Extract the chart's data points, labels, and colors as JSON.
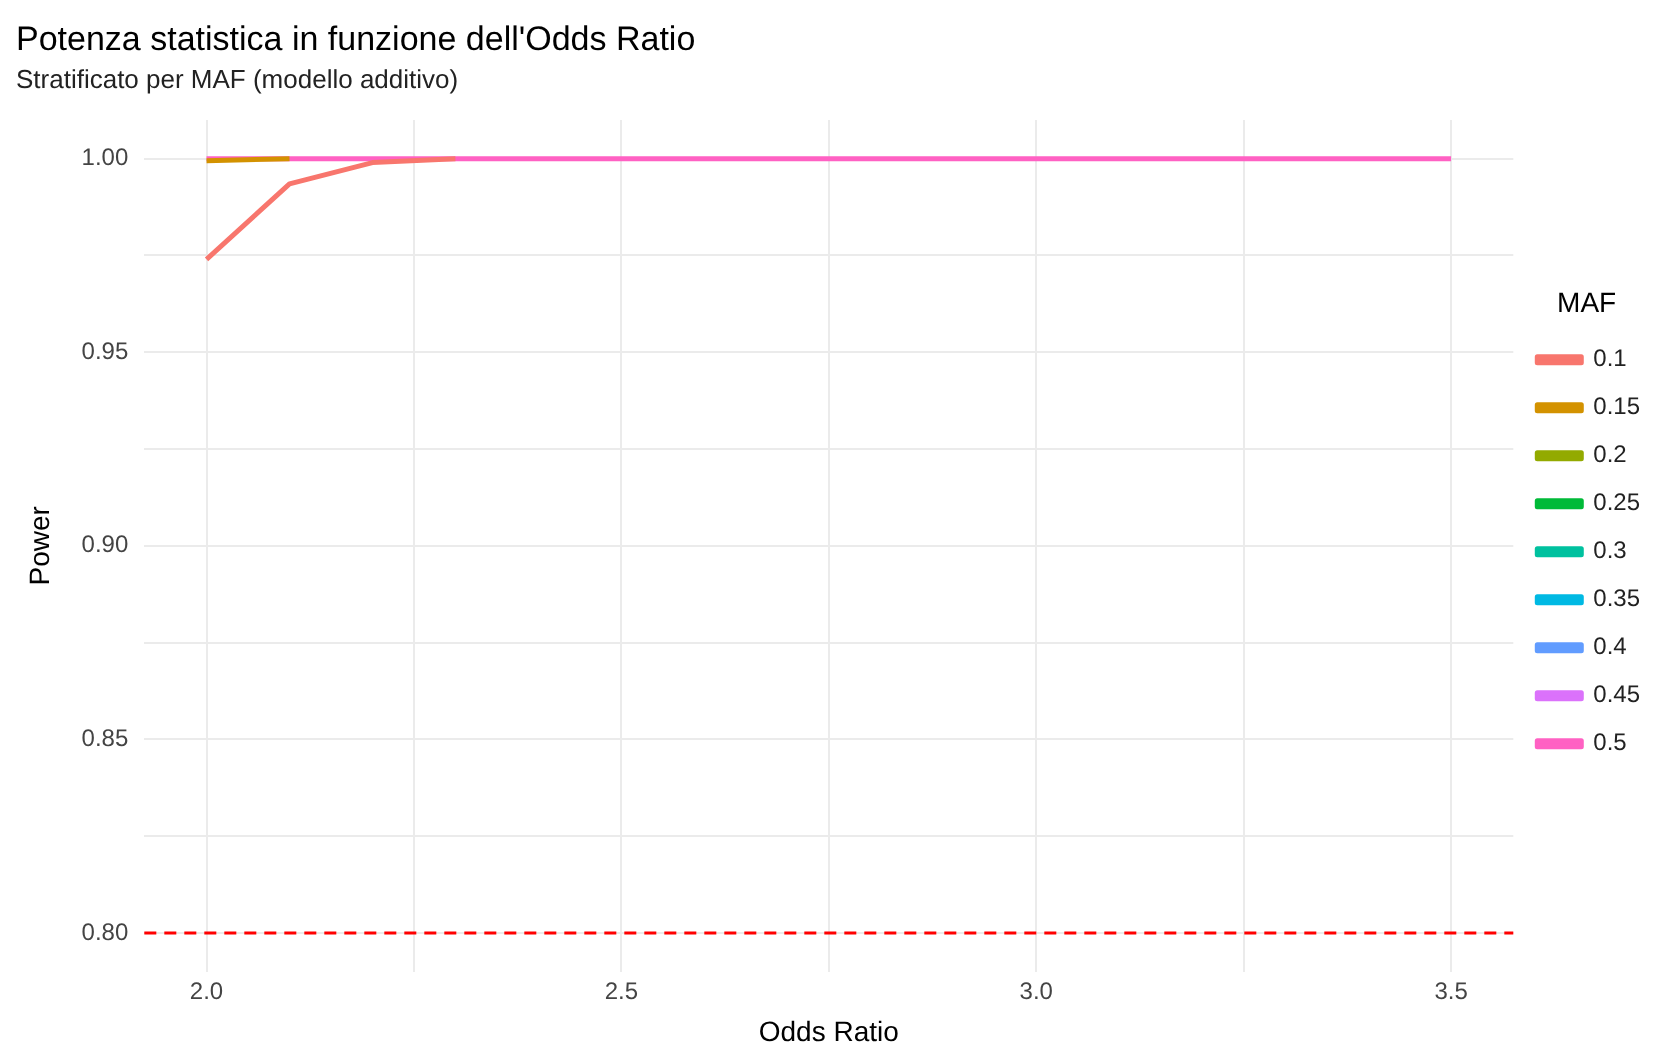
{
  "chart_data": {
    "type": "line",
    "title": "Potenza statistica in funzione dell'Odds Ratio",
    "subtitle": "Stratificato per MAF (modello additivo)",
    "xlabel": "Odds Ratio",
    "ylabel": "Power",
    "legend_title": "MAF",
    "x": [
      2.0,
      2.1,
      2.2,
      2.3,
      2.4,
      2.5,
      2.6,
      2.7,
      2.8,
      2.9,
      3.0,
      3.1,
      3.2,
      3.3,
      3.4,
      3.5
    ],
    "series": [
      {
        "name": "0.1",
        "color": "#f8766d",
        "values": [
          0.974,
          0.9935,
          0.999,
          1,
          null,
          null,
          null,
          null,
          null,
          null,
          null,
          null,
          null,
          null,
          null,
          null
        ]
      },
      {
        "name": "0.15",
        "color": "#d39200",
        "values": [
          0.9995,
          1,
          null,
          null,
          null,
          null,
          null,
          null,
          null,
          null,
          null,
          null,
          null,
          null,
          null,
          null
        ]
      },
      {
        "name": "0.2",
        "color": "#93aa00",
        "values": [
          null,
          null,
          null,
          null,
          null,
          null,
          null,
          null,
          null,
          null,
          null,
          null,
          null,
          null,
          null,
          null
        ]
      },
      {
        "name": "0.25",
        "color": "#00ba38",
        "values": [
          null,
          null,
          null,
          null,
          null,
          null,
          null,
          null,
          null,
          null,
          null,
          null,
          null,
          null,
          null,
          null
        ]
      },
      {
        "name": "0.3",
        "color": "#00c19f",
        "values": [
          null,
          null,
          null,
          null,
          null,
          null,
          null,
          null,
          null,
          null,
          null,
          null,
          null,
          null,
          null,
          null
        ]
      },
      {
        "name": "0.35",
        "color": "#00b9e3",
        "values": [
          null,
          null,
          null,
          null,
          null,
          null,
          null,
          null,
          null,
          null,
          null,
          null,
          null,
          null,
          null,
          null
        ]
      },
      {
        "name": "0.4",
        "color": "#619cff",
        "values": [
          null,
          null,
          null,
          null,
          null,
          null,
          null,
          null,
          null,
          null,
          null,
          null,
          null,
          null,
          null,
          null
        ]
      },
      {
        "name": "0.45",
        "color": "#db72fb",
        "values": [
          null,
          null,
          null,
          null,
          null,
          null,
          null,
          null,
          null,
          null,
          null,
          null,
          null,
          null,
          null,
          null
        ]
      },
      {
        "name": "0.5",
        "color": "#ff61c3",
        "values": [
          1,
          1,
          1,
          1,
          1,
          1,
          1,
          1,
          1,
          1,
          1,
          1,
          1,
          1,
          1,
          1
        ]
      }
    ],
    "xlim": [
      1.925,
      3.575
    ],
    "xticks": [
      {
        "value": 2,
        "label": "2.0"
      },
      {
        "value": 2.25,
        "label": null
      },
      2.5,
      {
        "value": 2.75,
        "label": null
      },
      {
        "value": 3,
        "label": "3.0"
      },
      {
        "value": 3.25,
        "label": null
      },
      3.5
    ],
    "ylim": [
      0.79,
      1.01
    ],
    "yticks": [
      {
        "value": 0.8,
        "label": "0.80"
      },
      {
        "value": 0.825,
        "label": null
      },
      0.85,
      {
        "value": 0.875,
        "label": null
      },
      {
        "value": 0.9,
        "label": "0.90"
      },
      {
        "value": 0.925,
        "label": null
      },
      0.95,
      {
        "value": 0.975,
        "label": null
      },
      {
        "value": 1,
        "label": "1.00"
      }
    ],
    "ref_lines": [
      {
        "axis": "y",
        "value": 0.8,
        "color": "#ff0000",
        "line_style": "dashed"
      }
    ],
    "grid": true,
    "legend": "right",
    "marker": "none",
    "line_style": "solid"
  }
}
